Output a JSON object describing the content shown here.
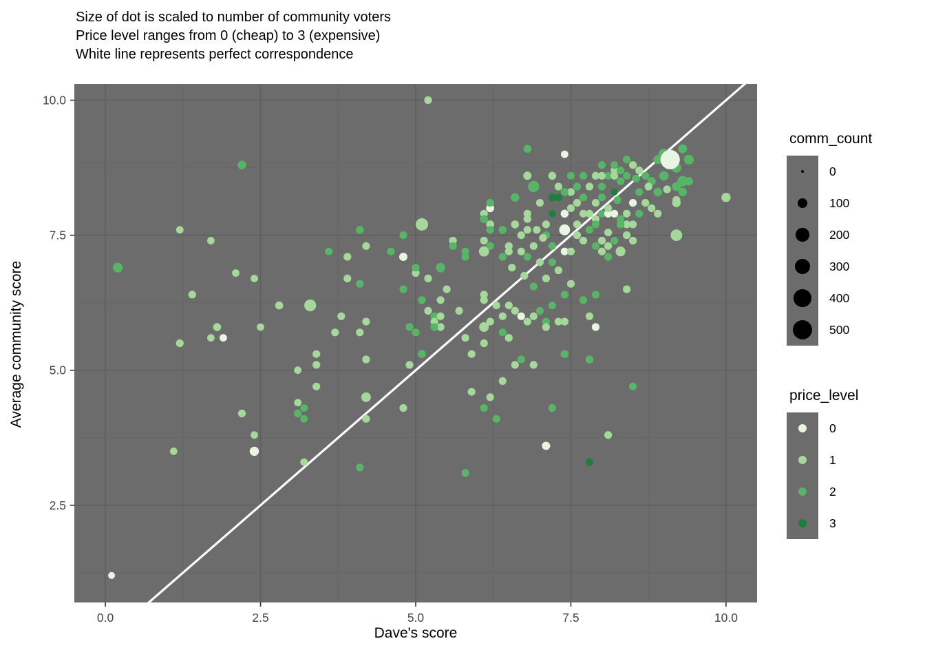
{
  "header": {
    "lines": [
      "Size of dot is scaled to number of community voters",
      "Price level ranges from 0 (cheap) to 3 (expensive)",
      "White line represents perfect correspondence"
    ]
  },
  "chart_data": {
    "type": "scatter",
    "xlabel": "Dave's score",
    "ylabel": "Average community score",
    "xlim": [
      -0.5,
      10.5
    ],
    "ylim": [
      0.7,
      10.3
    ],
    "x_ticks": [
      {
        "v": 0,
        "label": "0.0"
      },
      {
        "v": 2.5,
        "label": "2.5"
      },
      {
        "v": 5,
        "label": "5.0"
      },
      {
        "v": 7.5,
        "label": "7.5"
      },
      {
        "v": 10,
        "label": "10.0"
      }
    ],
    "y_ticks": [
      {
        "v": 2.5,
        "label": "2.5"
      },
      {
        "v": 5,
        "label": "5.0"
      },
      {
        "v": 7.5,
        "label": "7.5"
      },
      {
        "v": 10,
        "label": "10.0"
      }
    ],
    "minor_ticks_x": [
      1.25,
      3.75,
      6.25,
      8.75
    ],
    "minor_ticks_y": [
      1.25,
      3.75,
      6.25,
      8.75
    ],
    "grid": true,
    "identity_line": {
      "slope": 1,
      "intercept": 0,
      "meaning": "perfect correspondence",
      "color": "#ffffff"
    },
    "size_scale": {
      "r_base": 2,
      "r_coef": 0.54
    },
    "colors": {
      "panel_bg": "#6c6c6c",
      "grid_major": "#5e5e5e",
      "grid_minor": "#656565",
      "price_levels": [
        "#e8f5e2",
        "#a6d89c",
        "#58b567",
        "#1e7e3b"
      ],
      "legend_dot": "#000000",
      "identity_line": "#ffffff",
      "tick_text": "#444444",
      "text": "#000000"
    },
    "legends": {
      "size": {
        "title": "comm_count",
        "entries": [
          {
            "label": "0",
            "value": 0
          },
          {
            "label": "100",
            "value": 100
          },
          {
            "label": "200",
            "value": 200
          },
          {
            "label": "300",
            "value": 300
          },
          {
            "label": "400",
            "value": 400
          },
          {
            "label": "500",
            "value": 500
          }
        ]
      },
      "color": {
        "title": "price_level",
        "entries": [
          {
            "label": "0",
            "level": 0
          },
          {
            "label": "1",
            "level": 1
          },
          {
            "label": "2",
            "level": 2
          },
          {
            "label": "3",
            "level": 3
          }
        ]
      }
    },
    "point_columns": [
      "daves_score",
      "avg_community_score",
      "price_level",
      "comm_count"
    ],
    "points": [
      [
        0.1,
        1.2,
        0,
        30
      ],
      [
        0.2,
        6.9,
        2,
        90
      ],
      [
        1.2,
        7.6,
        1,
        40
      ],
      [
        1.7,
        7.4,
        1,
        40
      ],
      [
        2.2,
        8.8,
        2,
        60
      ],
      [
        2.1,
        6.8,
        1,
        40
      ],
      [
        2.4,
        6.7,
        1,
        40
      ],
      [
        1.4,
        6.4,
        1,
        45
      ],
      [
        2.8,
        6.2,
        1,
        50
      ],
      [
        1.8,
        5.8,
        1,
        50
      ],
      [
        2.5,
        5.8,
        1,
        40
      ],
      [
        1.7,
        5.6,
        1,
        40
      ],
      [
        1.9,
        5.6,
        0,
        40
      ],
      [
        1.2,
        5.5,
        1,
        45
      ],
      [
        3.1,
        5.0,
        1,
        40
      ],
      [
        3.2,
        4.3,
        2,
        40
      ],
      [
        3.1,
        4.4,
        1,
        40
      ],
      [
        3.1,
        4.2,
        2,
        45
      ],
      [
        3.2,
        4.1,
        2,
        40
      ],
      [
        2.2,
        4.2,
        1,
        45
      ],
      [
        2.4,
        3.8,
        1,
        40
      ],
      [
        1.1,
        3.5,
        1,
        40
      ],
      [
        2.4,
        3.5,
        0,
        75
      ],
      [
        3.2,
        3.3,
        1,
        40
      ],
      [
        3.3,
        6.2,
        1,
        150
      ],
      [
        3.6,
        7.2,
        2,
        45
      ],
      [
        3.9,
        6.7,
        1,
        45
      ],
      [
        3.8,
        6.0,
        1,
        45
      ],
      [
        4.2,
        5.9,
        1,
        45
      ],
      [
        3.7,
        5.7,
        1,
        45
      ],
      [
        4.1,
        5.7,
        1,
        45
      ],
      [
        3.4,
        5.3,
        1,
        45
      ],
      [
        4.2,
        5.2,
        1,
        45
      ],
      [
        3.4,
        5.1,
        1,
        45
      ],
      [
        3.4,
        4.7,
        1,
        45
      ],
      [
        4.2,
        4.5,
        1,
        85
      ],
      [
        4.8,
        4.3,
        1,
        45
      ],
      [
        4.2,
        4.1,
        1,
        45
      ],
      [
        4.1,
        3.2,
        2,
        45
      ],
      [
        4.1,
        7.6,
        2,
        50
      ],
      [
        4.2,
        7.3,
        1,
        45
      ],
      [
        4.6,
        7.2,
        2,
        45
      ],
      [
        4.8,
        7.5,
        2,
        45
      ],
      [
        4.8,
        7.1,
        0,
        55
      ],
      [
        3.9,
        7.1,
        1,
        45
      ],
      [
        4.1,
        6.6,
        2,
        45
      ],
      [
        4.8,
        6.5,
        2,
        45
      ],
      [
        5.0,
        6.8,
        1,
        45
      ],
      [
        5.2,
        10.0,
        1,
        45
      ],
      [
        5.1,
        7.7,
        1,
        170
      ],
      [
        5.6,
        7.4,
        1,
        45
      ],
      [
        5.6,
        7.3,
        2,
        45
      ],
      [
        5.8,
        7.2,
        2,
        45
      ],
      [
        5.8,
        7.1,
        2,
        45
      ],
      [
        5.4,
        6.9,
        2,
        80
      ],
      [
        5.0,
        6.9,
        2,
        45
      ],
      [
        5.2,
        6.7,
        1,
        45
      ],
      [
        5.5,
        6.5,
        1,
        45
      ],
      [
        5.2,
        6.1,
        1,
        45
      ],
      [
        5.7,
        6.1,
        1,
        45
      ],
      [
        5.3,
        6.0,
        2,
        45
      ],
      [
        5.3,
        5.9,
        1,
        45
      ],
      [
        5.4,
        6.3,
        1,
        45
      ],
      [
        5.1,
        6.3,
        2,
        45
      ],
      [
        5.4,
        6.0,
        1,
        45
      ],
      [
        5.4,
        5.8,
        1,
        45
      ],
      [
        4.9,
        5.8,
        2,
        45
      ],
      [
        5.0,
        5.7,
        2,
        45
      ],
      [
        5.3,
        5.8,
        2,
        45
      ],
      [
        5.1,
        5.3,
        2,
        50
      ],
      [
        4.9,
        5.1,
        1,
        45
      ],
      [
        5.8,
        5.6,
        1,
        45
      ],
      [
        6.1,
        5.5,
        1,
        45
      ],
      [
        5.9,
        5.3,
        1,
        45
      ],
      [
        5.9,
        4.6,
        1,
        45
      ],
      [
        6.2,
        4.5,
        1,
        45
      ],
      [
        6.1,
        4.3,
        2,
        45
      ],
      [
        6.3,
        4.1,
        2,
        45
      ],
      [
        5.8,
        3.1,
        2,
        45
      ],
      [
        6.7,
        5.2,
        2,
        45
      ],
      [
        6.6,
        5.1,
        1,
        45
      ],
      [
        6.9,
        5.1,
        1,
        45
      ],
      [
        6.4,
        4.8,
        1,
        45
      ],
      [
        6.2,
        8.0,
        0,
        50
      ],
      [
        6.2,
        8.1,
        2,
        45
      ],
      [
        6.1,
        7.9,
        1,
        45
      ],
      [
        6.1,
        7.8,
        2,
        50
      ],
      [
        6.2,
        7.7,
        1,
        50
      ],
      [
        6.2,
        7.6,
        2,
        45
      ],
      [
        6.4,
        7.6,
        2,
        50
      ],
      [
        6.6,
        7.7,
        1,
        50
      ],
      [
        6.8,
        7.9,
        1,
        45
      ],
      [
        6.8,
        7.8,
        1,
        45
      ],
      [
        6.7,
        7.5,
        1,
        45
      ],
      [
        6.8,
        7.6,
        1,
        45
      ],
      [
        6.5,
        7.3,
        1,
        45
      ],
      [
        6.7,
        7.2,
        1,
        45
      ],
      [
        6.9,
        7.3,
        1,
        45
      ],
      [
        6.1,
        7.4,
        1,
        45
      ],
      [
        6.2,
        7.3,
        2,
        45
      ],
      [
        6.1,
        7.2,
        1,
        100
      ],
      [
        6.4,
        7.1,
        2,
        45
      ],
      [
        6.5,
        7.2,
        1,
        45
      ],
      [
        6.8,
        7.1,
        2,
        45
      ],
      [
        7.0,
        7.0,
        1,
        45
      ],
      [
        6.1,
        6.4,
        1,
        45
      ],
      [
        6.1,
        6.3,
        1,
        45
      ],
      [
        6.3,
        6.2,
        1,
        45
      ],
      [
        6.5,
        6.2,
        1,
        45
      ],
      [
        6.6,
        6.1,
        1,
        45
      ],
      [
        6.7,
        6.0,
        0,
        45
      ],
      [
        6.4,
        6.0,
        1,
        45
      ],
      [
        6.2,
        5.9,
        1,
        45
      ],
      [
        6.1,
        5.8,
        1,
        85
      ],
      [
        6.4,
        5.7,
        2,
        45
      ],
      [
        6.5,
        5.6,
        1,
        45
      ],
      [
        6.8,
        5.9,
        1,
        45
      ],
      [
        6.9,
        6.0,
        1,
        45
      ],
      [
        7.0,
        6.1,
        2,
        45
      ],
      [
        6.6,
        8.2,
        2,
        60
      ],
      [
        6.8,
        8.6,
        1,
        55
      ],
      [
        6.9,
        8.4,
        2,
        130
      ],
      [
        6.8,
        9.1,
        2,
        50
      ],
      [
        7.2,
        8.6,
        1,
        50
      ],
      [
        7.2,
        8.2,
        3,
        45
      ],
      [
        7.3,
        8.2,
        3,
        45
      ],
      [
        7.5,
        8.3,
        1,
        45
      ],
      [
        7.6,
        8.4,
        2,
        45
      ],
      [
        7.8,
        8.4,
        1,
        45
      ],
      [
        8.0,
        8.4,
        2,
        45
      ],
      [
        8.1,
        8.6,
        2,
        45
      ],
      [
        8.2,
        8.6,
        1,
        45
      ],
      [
        8.3,
        8.5,
        2,
        45
      ],
      [
        7.0,
        8.1,
        1,
        45
      ],
      [
        7.2,
        7.9,
        3,
        35
      ],
      [
        7.4,
        7.9,
        0,
        50
      ],
      [
        7.5,
        8.0,
        1,
        45
      ],
      [
        7.7,
        7.9,
        1,
        45
      ],
      [
        7.9,
        7.8,
        1,
        45
      ],
      [
        8.0,
        7.9,
        2,
        45
      ],
      [
        8.2,
        7.9,
        0,
        45
      ],
      [
        7.1,
        7.7,
        1,
        45
      ],
      [
        7.1,
        7.5,
        2,
        45
      ],
      [
        7.4,
        7.6,
        0,
        120
      ],
      [
        7.6,
        7.5,
        1,
        45
      ],
      [
        7.7,
        7.4,
        1,
        45
      ],
      [
        7.9,
        7.7,
        2,
        45
      ],
      [
        8.0,
        7.4,
        1,
        45
      ],
      [
        8.3,
        7.8,
        2,
        45
      ],
      [
        7.2,
        7.3,
        2,
        45
      ],
      [
        7.4,
        7.2,
        0,
        45
      ],
      [
        7.5,
        7.2,
        1,
        45
      ],
      [
        7.9,
        7.3,
        2,
        45
      ],
      [
        8.0,
        7.2,
        1,
        45
      ],
      [
        8.2,
        7.4,
        2,
        45
      ],
      [
        7.2,
        7.0,
        2,
        45
      ],
      [
        7.1,
        5.9,
        2,
        45
      ],
      [
        7.3,
        5.9,
        1,
        45
      ],
      [
        7.4,
        5.9,
        1,
        45
      ],
      [
        7.8,
        6.0,
        1,
        45
      ],
      [
        7.4,
        6.4,
        2,
        45
      ],
      [
        7.7,
        6.3,
        2,
        45
      ],
      [
        7.9,
        6.4,
        2,
        45
      ],
      [
        7.2,
        6.2,
        2,
        45
      ],
      [
        7.1,
        5.8,
        1,
        45
      ],
      [
        7.9,
        5.8,
        0,
        45
      ],
      [
        8.4,
        6.5,
        1,
        45
      ],
      [
        7.4,
        9.0,
        0,
        40
      ],
      [
        7.4,
        5.3,
        2,
        50
      ],
      [
        7.8,
        5.2,
        2,
        50
      ],
      [
        8.5,
        4.7,
        2,
        45
      ],
      [
        7.2,
        4.3,
        2,
        45
      ],
      [
        8.1,
        3.8,
        1,
        45
      ],
      [
        7.1,
        3.6,
        0,
        55
      ],
      [
        7.8,
        3.3,
        3,
        45
      ],
      [
        8.5,
        8.8,
        1,
        45
      ],
      [
        8.4,
        8.9,
        2,
        45
      ],
      [
        8.2,
        8.7,
        1,
        40
      ],
      [
        8.2,
        8.3,
        3,
        30
      ],
      [
        8.5,
        8.1,
        0,
        45
      ],
      [
        9.2,
        8.1,
        1,
        60
      ],
      [
        8.1,
        7.9,
        0,
        45
      ],
      [
        8.4,
        7.9,
        1,
        45
      ],
      [
        8.4,
        7.7,
        1,
        45
      ],
      [
        8.5,
        7.7,
        1,
        45
      ],
      [
        8.3,
        7.7,
        2,
        45
      ],
      [
        8.4,
        7.5,
        1,
        45
      ],
      [
        8.5,
        7.4,
        1,
        45
      ],
      [
        8.1,
        7.3,
        1,
        45
      ],
      [
        8.3,
        7.2,
        1,
        90
      ],
      [
        8.1,
        7.1,
        2,
        45
      ],
      [
        9.3,
        9.1,
        2,
        70
      ],
      [
        9.4,
        8.9,
        2,
        90
      ],
      [
        9.3,
        8.5,
        2,
        110
      ],
      [
        9.4,
        8.5,
        2,
        60
      ],
      [
        9.0,
        8.6,
        2,
        80
      ],
      [
        8.8,
        8.5,
        2,
        60
      ],
      [
        8.9,
        8.3,
        2,
        60
      ],
      [
        9.2,
        8.4,
        2,
        70
      ],
      [
        9.3,
        8.3,
        2,
        60
      ],
      [
        9.0,
        9.0,
        2,
        120
      ],
      [
        9.2,
        8.75,
        2,
        90
      ],
      [
        8.9,
        8.9,
        2,
        70
      ],
      [
        8.0,
        8.8,
        2,
        45
      ],
      [
        8.2,
        8.8,
        2,
        45
      ],
      [
        7.9,
        8.6,
        1,
        45
      ],
      [
        8.0,
        8.6,
        1,
        45
      ],
      [
        8.3,
        8.7,
        2,
        45
      ],
      [
        8.4,
        8.6,
        2,
        45
      ],
      [
        10.0,
        8.2,
        1,
        75
      ],
      [
        9.2,
        7.5,
        1,
        140
      ],
      [
        9.2,
        8.15,
        1,
        50
      ],
      [
        7.6,
        8.1,
        1,
        45
      ],
      [
        7.7,
        8.2,
        2,
        45
      ],
      [
        7.8,
        7.9,
        1,
        45
      ],
      [
        7.9,
        8.1,
        1,
        45
      ],
      [
        8.0,
        8.2,
        2,
        45
      ],
      [
        8.1,
        8.0,
        1,
        45
      ],
      [
        8.6,
        8.3,
        2,
        45
      ],
      [
        8.7,
        8.1,
        1,
        45
      ],
      [
        8.6,
        7.9,
        2,
        45
      ],
      [
        8.7,
        8.6,
        2,
        45
      ],
      [
        8.8,
        8.0,
        1,
        45
      ],
      [
        8.9,
        7.9,
        1,
        45
      ],
      [
        7.5,
        8.6,
        2,
        45
      ],
      [
        7.7,
        8.6,
        2,
        45
      ],
      [
        7.3,
        8.4,
        1,
        45
      ],
      [
        7.4,
        8.3,
        2,
        45
      ],
      [
        8.6,
        8.7,
        1,
        45
      ],
      [
        8.75,
        8.4,
        1,
        45
      ],
      [
        8.55,
        8.55,
        2,
        45
      ],
      [
        9.05,
        8.35,
        1,
        45
      ],
      [
        7.6,
        7.7,
        1,
        45
      ],
      [
        7.8,
        7.6,
        2,
        45
      ],
      [
        8.1,
        7.55,
        1,
        45
      ],
      [
        8.25,
        8.15,
        2,
        45
      ],
      [
        6.95,
        7.6,
        1,
        45
      ],
      [
        7.05,
        7.45,
        1,
        45
      ],
      [
        6.55,
        6.9,
        1,
        45
      ],
      [
        6.75,
        6.75,
        1,
        45
      ],
      [
        6.9,
        6.55,
        2,
        45
      ],
      [
        7.1,
        6.7,
        1,
        45
      ],
      [
        7.3,
        6.85,
        1,
        45
      ],
      [
        7.5,
        6.6,
        1,
        45
      ],
      [
        9.1,
        8.9,
        0,
        500
      ]
    ]
  }
}
